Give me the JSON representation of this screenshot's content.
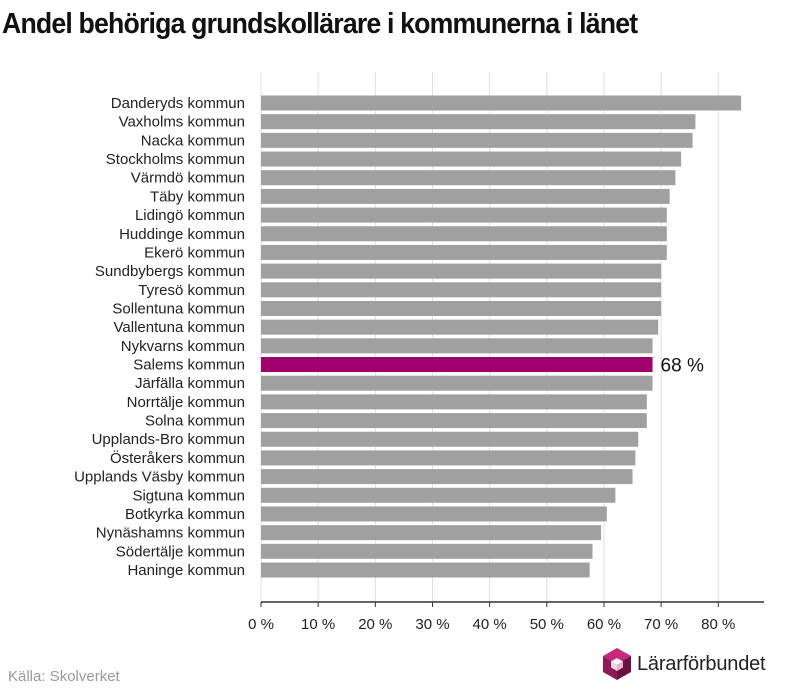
{
  "header": {
    "title": "Andel behöriga grundskollärare i kommunerna i länet"
  },
  "footer": {
    "source": "Källa: Skolverket",
    "logo_text": "Lärarförbundet"
  },
  "colors": {
    "bar": "#a0a0a0",
    "highlight": "#a0006b",
    "grid": "#e0e0e0",
    "axis": "#333333"
  },
  "chart_data": {
    "type": "bar",
    "orientation": "horizontal",
    "title": "Andel behöriga grundskollärare i kommunerna i länet",
    "xlabel": "",
    "ylabel": "",
    "xlim": [
      0,
      88
    ],
    "xticks": [
      0,
      10,
      20,
      30,
      40,
      50,
      60,
      70,
      80
    ],
    "tick_labels": [
      "0 %",
      "10 %",
      "20 %",
      "30 %",
      "40 %",
      "50 %",
      "60 %",
      "70 %",
      "80 %"
    ],
    "grid": true,
    "categories": [
      "Danderyds kommun",
      "Vaxholms kommun",
      "Nacka kommun",
      "Stockholms kommun",
      "Värmdö kommun",
      "Täby kommun",
      "Lidingö kommun",
      "Huddinge kommun",
      "Ekerö kommun",
      "Sundbybergs kommun",
      "Tyresö kommun",
      "Sollentuna kommun",
      "Vallentuna kommun",
      "Nykvarns kommun",
      "Salems kommun",
      "Järfälla kommun",
      "Norrtälje kommun",
      "Solna kommun",
      "Upplands-Bro kommun",
      "Österåkers kommun",
      "Upplands Väsby kommun",
      "Sigtuna kommun",
      "Botkyrka kommun",
      "Nynäshamns kommun",
      "Södertälje kommun",
      "Haninge kommun"
    ],
    "values": [
      84,
      76,
      75.5,
      73.5,
      72.5,
      71.5,
      71,
      71,
      71,
      70,
      70,
      70,
      69.5,
      68.5,
      68.5,
      68.5,
      67.5,
      67.5,
      66,
      65.5,
      65,
      62,
      60.5,
      59.5,
      58,
      57.5
    ],
    "highlight_category": "Salems kommun",
    "annotations": [
      {
        "category": "Salems kommun",
        "text": "68 %"
      }
    ]
  }
}
